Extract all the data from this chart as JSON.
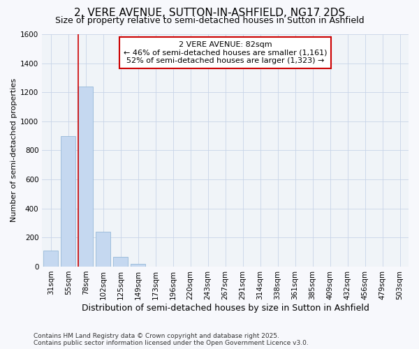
{
  "title": "2, VERE AVENUE, SUTTON-IN-ASHFIELD, NG17 2DS",
  "subtitle": "Size of property relative to semi-detached houses in Sutton in Ashfield",
  "xlabel": "Distribution of semi-detached houses by size in Sutton in Ashfield",
  "ylabel": "Number of semi-detached properties",
  "footer1": "Contains HM Land Registry data © Crown copyright and database right 2025.",
  "footer2": "Contains public sector information licensed under the Open Government Licence v3.0.",
  "categories": [
    "31sqm",
    "55sqm",
    "78sqm",
    "102sqm",
    "125sqm",
    "149sqm",
    "173sqm",
    "196sqm",
    "220sqm",
    "243sqm",
    "267sqm",
    "291sqm",
    "314sqm",
    "338sqm",
    "361sqm",
    "385sqm",
    "409sqm",
    "432sqm",
    "456sqm",
    "479sqm",
    "503sqm"
  ],
  "values": [
    110,
    900,
    1240,
    240,
    65,
    20,
    0,
    0,
    0,
    0,
    0,
    0,
    0,
    0,
    0,
    0,
    0,
    0,
    0,
    0,
    0
  ],
  "bar_color": "#c5d8f0",
  "bar_edgecolor": "#95b8d8",
  "vline_color": "#cc0000",
  "vline_x_index": 2,
  "annotation_text_line1": "2 VERE AVENUE: 82sqm",
  "annotation_text_line2": "← 46% of semi-detached houses are smaller (1,161)",
  "annotation_text_line3": "52% of semi-detached houses are larger (1,323) →",
  "annotation_box_facecolor": "#ffffff",
  "annotation_box_edgecolor": "#cc0000",
  "ylim": [
    0,
    1600
  ],
  "yticks": [
    0,
    200,
    400,
    600,
    800,
    1000,
    1200,
    1400,
    1600
  ],
  "background_color": "#f7f8fc",
  "plot_bg_color": "#f0f4f8",
  "grid_color": "#c8d4e8",
  "title_fontsize": 11,
  "subtitle_fontsize": 9,
  "xlabel_fontsize": 9,
  "ylabel_fontsize": 8,
  "tick_fontsize": 7.5,
  "footer_fontsize": 6.5,
  "annot_fontsize": 8
}
